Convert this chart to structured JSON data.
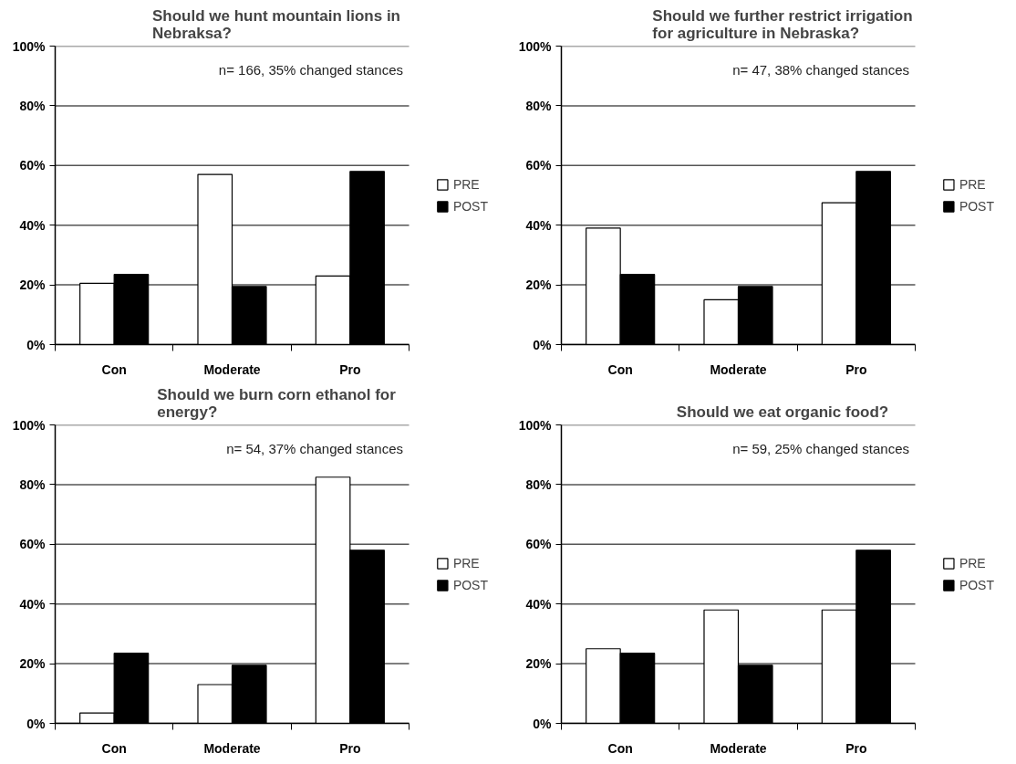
{
  "chart_data": [
    {
      "type": "bar",
      "title": "Should we hunt mountain lions in Nebraksa?",
      "categories": [
        "Con",
        "Moderate",
        "Pro"
      ],
      "series": [
        {
          "name": "PRE",
          "color": "#ffffff",
          "values": [
            20.5,
            57,
            23
          ]
        },
        {
          "name": "POST",
          "color": "#000000",
          "values": [
            23.5,
            19.5,
            58
          ]
        }
      ],
      "ylim": [
        0,
        100
      ],
      "yticks": [
        {
          "value": 0,
          "label": "0%"
        },
        {
          "value": 20,
          "label": "20%"
        },
        {
          "value": 40,
          "label": "40%"
        },
        {
          "value": 60,
          "label": "60%"
        },
        {
          "value": 80,
          "label": "80%"
        },
        {
          "value": 100,
          "label": "100%"
        }
      ],
      "grid": "y",
      "legend": "right",
      "annotations": [
        "n= 166, 35% changed stances"
      ]
    },
    {
      "type": "bar",
      "title": "Should we further restrict irrigation for agriculture in Nebraska?",
      "categories": [
        "Con",
        "Moderate",
        "Pro"
      ],
      "series": [
        {
          "name": "PRE",
          "color": "#ffffff",
          "values": [
            39,
            15,
            47.5
          ]
        },
        {
          "name": "POST",
          "color": "#000000",
          "values": [
            23.5,
            19.5,
            58
          ]
        }
      ],
      "ylim": [
        0,
        100
      ],
      "yticks": [
        {
          "value": 0,
          "label": "0%"
        },
        {
          "value": 20,
          "label": "20%"
        },
        {
          "value": 40,
          "label": "40%"
        },
        {
          "value": 60,
          "label": "60%"
        },
        {
          "value": 80,
          "label": "80%"
        },
        {
          "value": 100,
          "label": "100%"
        }
      ],
      "grid": "y",
      "legend": "right",
      "annotations": [
        "n= 47, 38% changed stances"
      ]
    },
    {
      "type": "bar",
      "title": "Should we burn corn ethanol for energy?",
      "categories": [
        "Con",
        "Moderate",
        "Pro"
      ],
      "series": [
        {
          "name": "PRE",
          "color": "#ffffff",
          "values": [
            3.5,
            13,
            82.5
          ]
        },
        {
          "name": "POST",
          "color": "#000000",
          "values": [
            23.5,
            19.5,
            58
          ]
        }
      ],
      "ylim": [
        0,
        100
      ],
      "yticks": [
        {
          "value": 0,
          "label": "0%"
        },
        {
          "value": 20,
          "label": "20%"
        },
        {
          "value": 40,
          "label": "40%"
        },
        {
          "value": 60,
          "label": "60%"
        },
        {
          "value": 80,
          "label": "80%"
        },
        {
          "value": 100,
          "label": "100%"
        }
      ],
      "grid": "y",
      "legend": "right",
      "annotations": [
        "n= 54, 37% changed stances"
      ]
    },
    {
      "type": "bar",
      "title": "Should we eat organic food?",
      "categories": [
        "Con",
        "Moderate",
        "Pro"
      ],
      "series": [
        {
          "name": "PRE",
          "color": "#ffffff",
          "values": [
            25,
            38,
            38
          ]
        },
        {
          "name": "POST",
          "color": "#000000",
          "values": [
            23.5,
            19.5,
            58
          ]
        }
      ],
      "ylim": [
        0,
        100
      ],
      "yticks": [
        {
          "value": 0,
          "label": "0%"
        },
        {
          "value": 20,
          "label": "20%"
        },
        {
          "value": 40,
          "label": "40%"
        },
        {
          "value": 60,
          "label": "60%"
        },
        {
          "value": 80,
          "label": "80%"
        },
        {
          "value": 100,
          "label": "100%"
        }
      ],
      "grid": "y",
      "legend": "right",
      "annotations": [
        "n= 59, 25% changed stances"
      ]
    }
  ]
}
